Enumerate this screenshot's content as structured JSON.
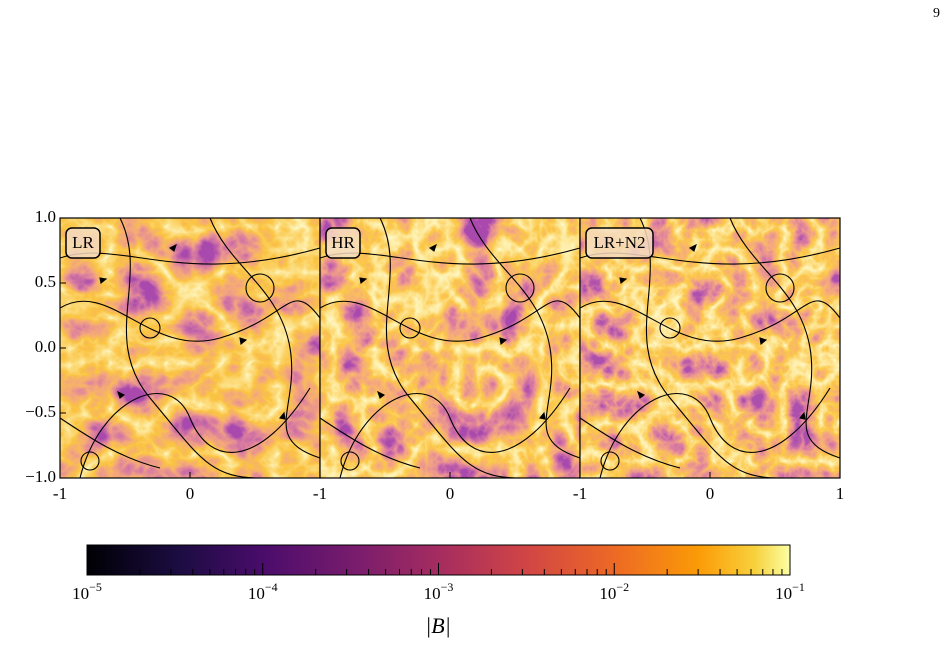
{
  "page_number": "9",
  "figure": {
    "yticks": [
      "1.0",
      "0.5",
      "0.0",
      "−0.5",
      "−1.0"
    ],
    "panels": [
      {
        "label": "LR",
        "xticks": [
          "-1",
          "0"
        ]
      },
      {
        "label": "HR",
        "xticks": [
          "-1",
          "0"
        ]
      },
      {
        "label": "LR+N2",
        "xticks": [
          "-1",
          "0",
          "1"
        ]
      }
    ],
    "colorbar": {
      "ticks": [
        {
          "base": "10",
          "exp": "−5"
        },
        {
          "base": "10",
          "exp": "−4"
        },
        {
          "base": "10",
          "exp": "−3"
        },
        {
          "base": "10",
          "exp": "−2"
        },
        {
          "base": "10",
          "exp": "−1"
        }
      ],
      "label": "|B|"
    }
  }
}
